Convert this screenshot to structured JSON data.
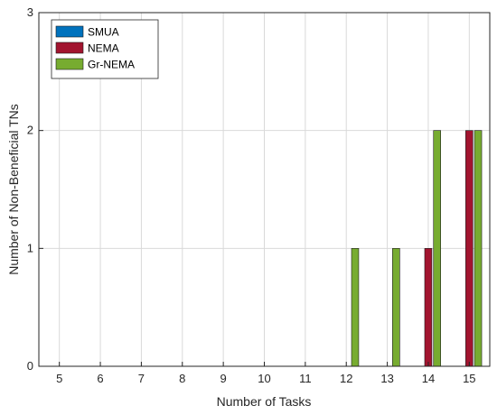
{
  "chart_data": {
    "type": "bar",
    "categories": [
      "5",
      "6",
      "7",
      "8",
      "9",
      "10",
      "11",
      "12",
      "13",
      "14",
      "15"
    ],
    "series": [
      {
        "name": "SMUA",
        "color": "#0072BD",
        "values": [
          0,
          0,
          0,
          0,
          0,
          0,
          0,
          0,
          0,
          0,
          0
        ]
      },
      {
        "name": "NEMA",
        "color": "#A2142F",
        "values": [
          0,
          0,
          0,
          0,
          0,
          0,
          0,
          0,
          0,
          1,
          2
        ]
      },
      {
        "name": "Gr-NEMA",
        "color": "#77AC30",
        "values": [
          0,
          0,
          0,
          0,
          0,
          0,
          0,
          1,
          1,
          2,
          2
        ]
      }
    ],
    "xlabel": "Number of Tasks",
    "ylabel": "Number of Non-Beneficial TNs",
    "ylim": [
      0,
      3
    ],
    "yticks": [
      "0",
      "1",
      "2",
      "3"
    ],
    "grid": true,
    "legend_position": "top-left"
  }
}
